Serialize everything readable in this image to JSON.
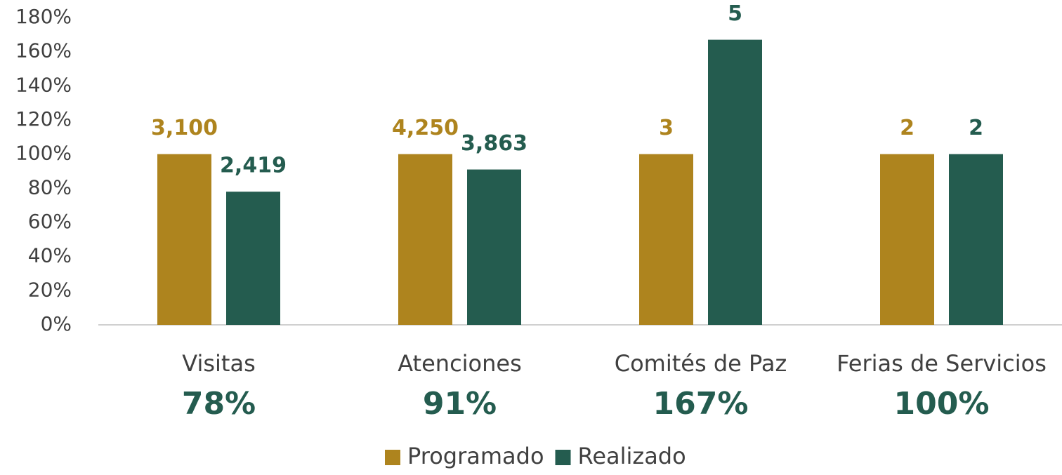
{
  "chart_data": {
    "type": "bar",
    "categories": [
      "Visitas",
      "Atenciones",
      "Comités de Paz",
      "Ferias de Servicios"
    ],
    "rates": [
      "78%",
      "91%",
      "167%",
      "100%"
    ],
    "series": [
      {
        "name": "Programado",
        "color": "#ae841e",
        "values": [
          100,
          100,
          100,
          100
        ],
        "data_labels": [
          "3,100",
          "4,250",
          "3",
          "2"
        ]
      },
      {
        "name": "Realizado",
        "color": "#245c4f",
        "values": [
          78,
          91,
          167,
          100
        ],
        "data_labels": [
          "2,419",
          "3,863",
          "5",
          "2"
        ]
      }
    ],
    "ylim": [
      0,
      180
    ],
    "yticks": [
      {
        "value": 0,
        "label": "0%"
      },
      {
        "value": 20,
        "label": "20%"
      },
      {
        "value": 40,
        "label": "40%"
      },
      {
        "value": 60,
        "label": "60%"
      },
      {
        "value": 80,
        "label": "80%"
      },
      {
        "value": 100,
        "label": "100%"
      },
      {
        "value": 120,
        "label": "120%"
      },
      {
        "value": 140,
        "label": "140%"
      },
      {
        "value": 160,
        "label": "160%"
      },
      {
        "value": 180,
        "label": "180%"
      }
    ],
    "legend": "bottom",
    "grid": false
  }
}
